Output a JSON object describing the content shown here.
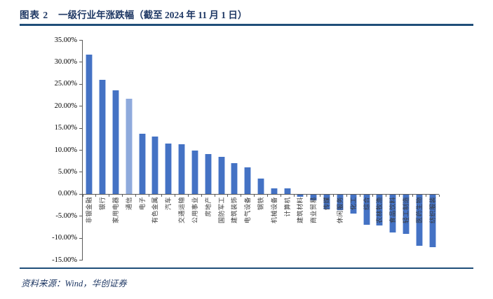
{
  "header": {
    "figure_label": "图表 2",
    "title": "一级行业年涨跌幅（截至 2024 年 11 月 1 日）"
  },
  "footer": {
    "source_label": "资料来源：Wind，华创证券"
  },
  "colors": {
    "accent_navy": "#1F3864",
    "rule_navy": "#1F4E79",
    "bar_fill": "#4472C4",
    "bar_edge": "#AEC3E9",
    "bar_fill_light": "#8FAADC",
    "bar_edge_light": "#C9D7F2",
    "axis_gray": "#595959"
  },
  "chart_data": {
    "type": "bar",
    "title": "一级行业年涨跌幅（截至 2024 年 11 月 1 日）",
    "xlabel": "",
    "ylabel": "",
    "grid": false,
    "legend_position": "none",
    "ylim": [
      -15,
      35
    ],
    "ytick_values": [
      35,
      30,
      25,
      20,
      15,
      10,
      5,
      0,
      -5,
      -10,
      -15
    ],
    "ytick_labels": [
      "35.00%",
      "30.00%",
      "25.00%",
      "20.00%",
      "15.00%",
      "10.00%",
      "5.00%",
      "0.00%",
      "-5.00%",
      "-10.00%",
      "-15.00%"
    ],
    "highlight_index": 3,
    "categories": [
      "非银金融",
      "银行",
      "家用电器",
      "通信",
      "电子",
      "有色金属",
      "汽车",
      "交通运输",
      "公用事业",
      "房地产",
      "国防军工",
      "建筑装饰",
      "电气设备",
      "钢铁",
      "机械设备",
      "计算机",
      "建筑材料",
      "商业贸易",
      "传媒",
      "休闲服务",
      "化工",
      "综合",
      "农林牧渔",
      "食品饮料",
      "轻工制造",
      "医药生物",
      "纺织服装"
    ],
    "values": [
      31.6,
      25.9,
      23.6,
      21.7,
      13.6,
      13.0,
      11.4,
      11.2,
      9.8,
      9.0,
      8.4,
      6.9,
      6.0,
      3.5,
      1.3,
      1.2,
      -0.5,
      -1.3,
      -3.4,
      -3.5,
      -4.4,
      -6.8,
      -7.0,
      -8.6,
      -8.9,
      -11.7,
      -11.9
    ]
  }
}
